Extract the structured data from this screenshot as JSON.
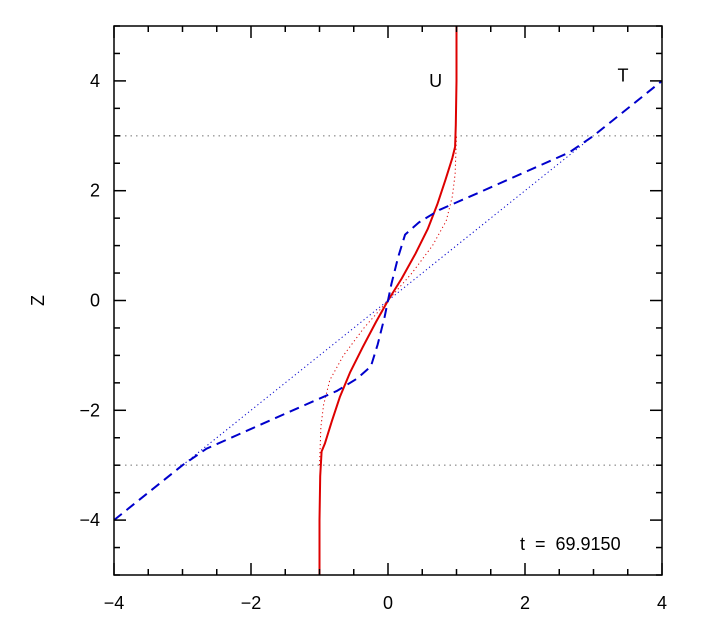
{
  "chart_data": {
    "type": "line",
    "ylabel": "Z",
    "xlabel": "",
    "xlim": [
      -4,
      4
    ],
    "ylim": [
      -5,
      5
    ],
    "x_ticks": [
      -4,
      -2,
      0,
      2,
      4
    ],
    "y_ticks": [
      -4,
      -2,
      0,
      2,
      4
    ],
    "x_tick_labels": [
      "−4",
      "−2",
      "0",
      "2",
      "4"
    ],
    "y_tick_labels": [
      "−4",
      "−2",
      "0",
      "2",
      "4"
    ],
    "reference_lines_z": [
      3,
      -3
    ],
    "reference_line_color": "#999999",
    "series": [
      {
        "name": "U",
        "color": "#dd0000",
        "style": "solid",
        "points": [
          [
            -1.0,
            -5.0
          ],
          [
            -1.0,
            -4.0
          ],
          [
            -0.99,
            -3.2
          ],
          [
            -0.97,
            -2.75
          ],
          [
            -0.92,
            -2.6
          ],
          [
            -0.82,
            -2.2
          ],
          [
            -0.7,
            -1.75
          ],
          [
            -0.55,
            -1.3
          ],
          [
            -0.37,
            -0.85
          ],
          [
            -0.18,
            -0.4
          ],
          [
            0.0,
            0.0
          ],
          [
            0.2,
            0.4
          ],
          [
            0.4,
            0.85
          ],
          [
            0.58,
            1.3
          ],
          [
            0.72,
            1.75
          ],
          [
            0.84,
            2.2
          ],
          [
            0.94,
            2.6
          ],
          [
            0.98,
            2.8
          ],
          [
            0.99,
            3.2
          ],
          [
            1.0,
            4.0
          ],
          [
            1.0,
            5.0
          ]
        ]
      },
      {
        "name": "",
        "color": "#dd0000",
        "style": "dotted",
        "points": [
          [
            -1.0,
            -3.0
          ],
          [
            -0.98,
            -2.3
          ],
          [
            -0.94,
            -1.9
          ],
          [
            -0.85,
            -1.45
          ],
          [
            -0.65,
            -1.0
          ],
          [
            -0.35,
            -0.5
          ],
          [
            0.0,
            0.0
          ],
          [
            0.35,
            0.5
          ],
          [
            0.65,
            1.0
          ],
          [
            0.85,
            1.45
          ],
          [
            0.94,
            1.9
          ],
          [
            0.98,
            2.3
          ],
          [
            1.0,
            3.0
          ]
        ]
      },
      {
        "name": "T",
        "color": "#0000cc",
        "style": "dashed",
        "points": [
          [
            -4.0,
            -4.0
          ],
          [
            -3.0,
            -3.0
          ],
          [
            -2.65,
            -2.7
          ],
          [
            -2.2,
            -2.45
          ],
          [
            -1.75,
            -2.2
          ],
          [
            -1.3,
            -1.95
          ],
          [
            -0.75,
            -1.65
          ],
          [
            -0.45,
            -1.42
          ],
          [
            -0.25,
            -1.2
          ],
          [
            -0.15,
            -0.8
          ],
          [
            -0.05,
            -0.3
          ],
          [
            0.0,
            0.0
          ],
          [
            0.05,
            0.3
          ],
          [
            0.15,
            0.8
          ],
          [
            0.25,
            1.2
          ],
          [
            0.45,
            1.42
          ],
          [
            0.75,
            1.65
          ],
          [
            1.3,
            1.95
          ],
          [
            1.75,
            2.2
          ],
          [
            2.2,
            2.45
          ],
          [
            2.65,
            2.7
          ],
          [
            3.0,
            3.0
          ],
          [
            4.0,
            4.0
          ]
        ]
      },
      {
        "name": "",
        "color": "#0000cc",
        "style": "dotted",
        "points": [
          [
            -3.0,
            -3.0
          ],
          [
            3.0,
            3.0
          ]
        ]
      }
    ],
    "series_labels": {
      "U": {
        "x": 0.6,
        "y": 4.0
      },
      "T": {
        "x": 3.35,
        "y": 4.1
      }
    },
    "annotation": "t  =  69.9150"
  }
}
